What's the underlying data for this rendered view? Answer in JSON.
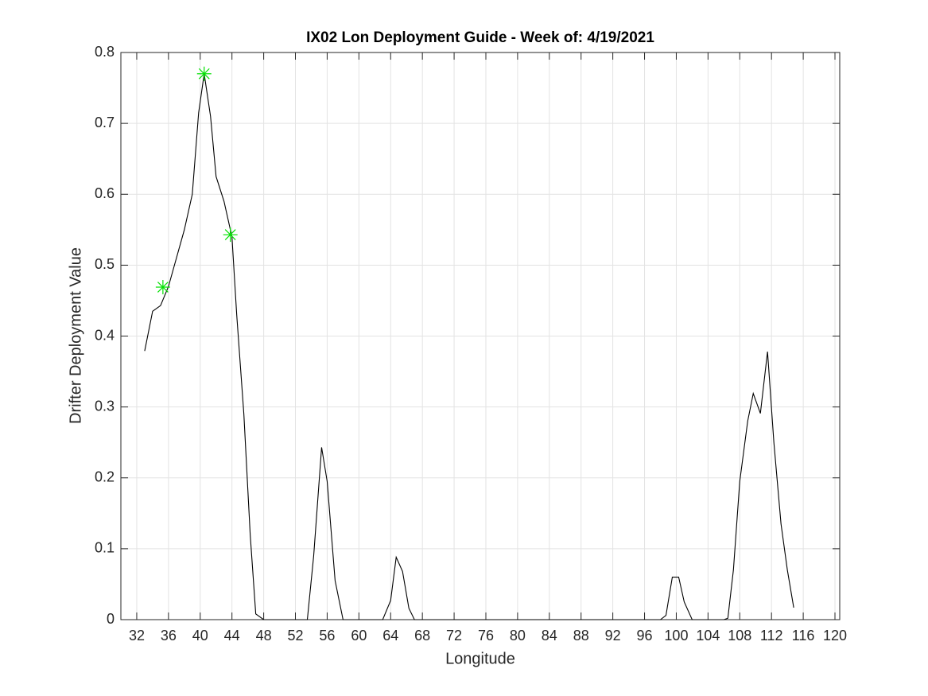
{
  "chart_data": {
    "type": "line",
    "title": "IX02 Lon Deployment Guide - Week of: 4/19/2021",
    "xlabel": "Longitude",
    "ylabel": "Drifter Deployment Value",
    "xlim": [
      30,
      120.6
    ],
    "ylim": [
      0,
      0.8
    ],
    "xticks": [
      32,
      36,
      40,
      44,
      48,
      52,
      56,
      60,
      64,
      68,
      72,
      76,
      80,
      84,
      88,
      92,
      96,
      100,
      104,
      108,
      112,
      116,
      120
    ],
    "yticks": [
      0,
      0.1,
      0.2,
      0.3,
      0.4,
      0.5,
      0.6,
      0.7,
      0.8
    ],
    "grid": true,
    "series": [
      {
        "color": "#000000",
        "marker": "none",
        "x": [
          33,
          34,
          35,
          36,
          37,
          38,
          39,
          39.8,
          40.5,
          41.3,
          42,
          43,
          44,
          44.6,
          45.5,
          46.3,
          47,
          48,
          53.5,
          54.3,
          55.3,
          56,
          57,
          58,
          63,
          64,
          64.7,
          65.5,
          66.3,
          67,
          98,
          98.7,
          99.5,
          100.3,
          101,
          102,
          106,
          106.5,
          107.2,
          108,
          109,
          109.7,
          110.6,
          111.5,
          112.3,
          113.2,
          114,
          114.8
        ],
        "values": [
          0.379,
          0.435,
          0.443,
          0.47,
          0.51,
          0.55,
          0.6,
          0.715,
          0.77,
          0.71,
          0.625,
          0.59,
          0.54,
          0.43,
          0.29,
          0.12,
          0.008,
          0,
          0,
          0.09,
          0.243,
          0.195,
          0.055,
          0,
          0,
          0.027,
          0.088,
          0.068,
          0.016,
          0,
          0,
          0.006,
          0.06,
          0.06,
          0.025,
          0,
          0,
          0.002,
          0.07,
          0.195,
          0.28,
          0.319,
          0.291,
          0.378,
          0.25,
          0.135,
          0.07,
          0.017
        ]
      },
      {
        "color": "#00e000",
        "marker": "asterisk",
        "x": [
          35.3,
          40.5,
          43.8
        ],
        "values": [
          0.469,
          0.77,
          0.543
        ]
      }
    ]
  }
}
